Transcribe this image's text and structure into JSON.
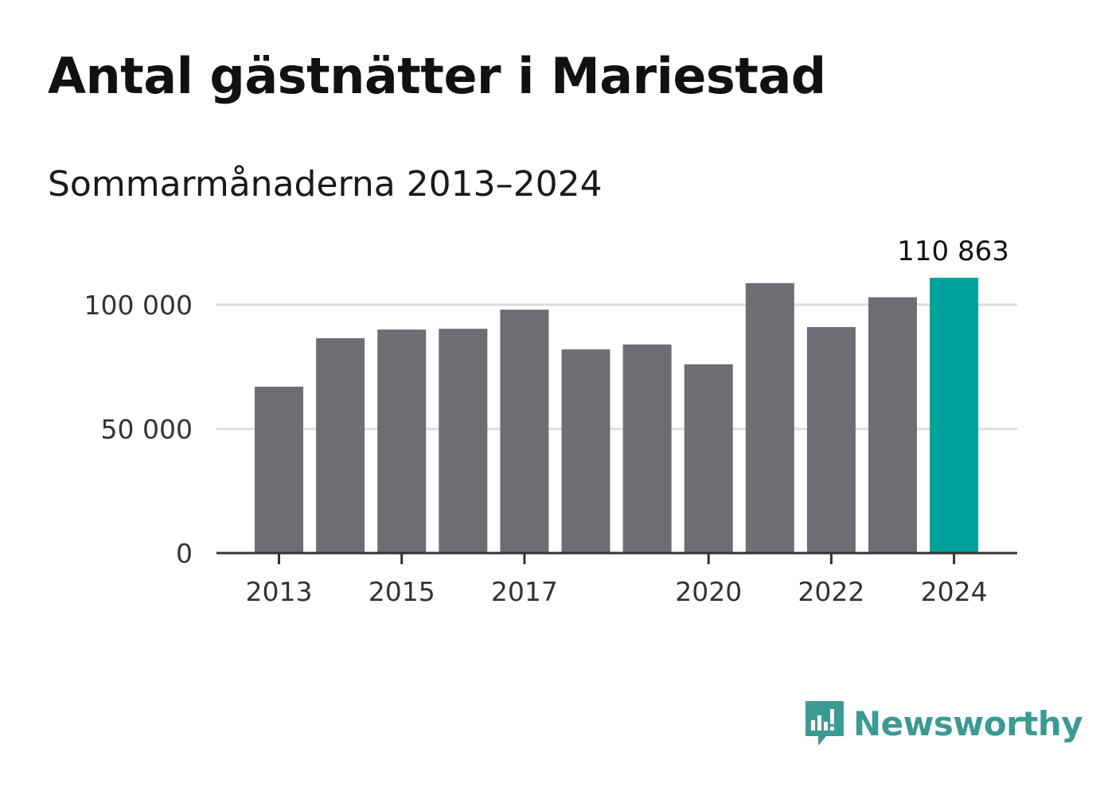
{
  "chart_data": {
    "type": "bar",
    "title": "Antal gästnätter i Mariestad",
    "subtitle": "Sommarmånaderna 2013–2024",
    "categories": [
      2013,
      2014,
      2015,
      2016,
      2017,
      2018,
      2019,
      2020,
      2021,
      2022,
      2023,
      2024
    ],
    "values": [
      67000,
      86500,
      90000,
      90300,
      98000,
      82000,
      84000,
      76000,
      108700,
      91000,
      103000,
      110863
    ],
    "highlight_index": 11,
    "highlight_label": "110 863",
    "x_tick_labels": [
      "2013",
      "2015",
      "2017",
      "2020",
      "2022",
      "2024"
    ],
    "y_ticks": [
      0,
      50000,
      100000
    ],
    "y_tick_labels": [
      "0",
      "50 000",
      "100 000"
    ],
    "ylim": [
      0,
      110863
    ],
    "grid": true,
    "colors": {
      "bar": "#6e6d73",
      "highlight": "#00a39a",
      "grid": "#dddddd",
      "axis": "#333333"
    }
  },
  "brand": {
    "name": "Newsworthy",
    "icon": "newsworthy-logo-icon",
    "color": "#3b9a93"
  }
}
